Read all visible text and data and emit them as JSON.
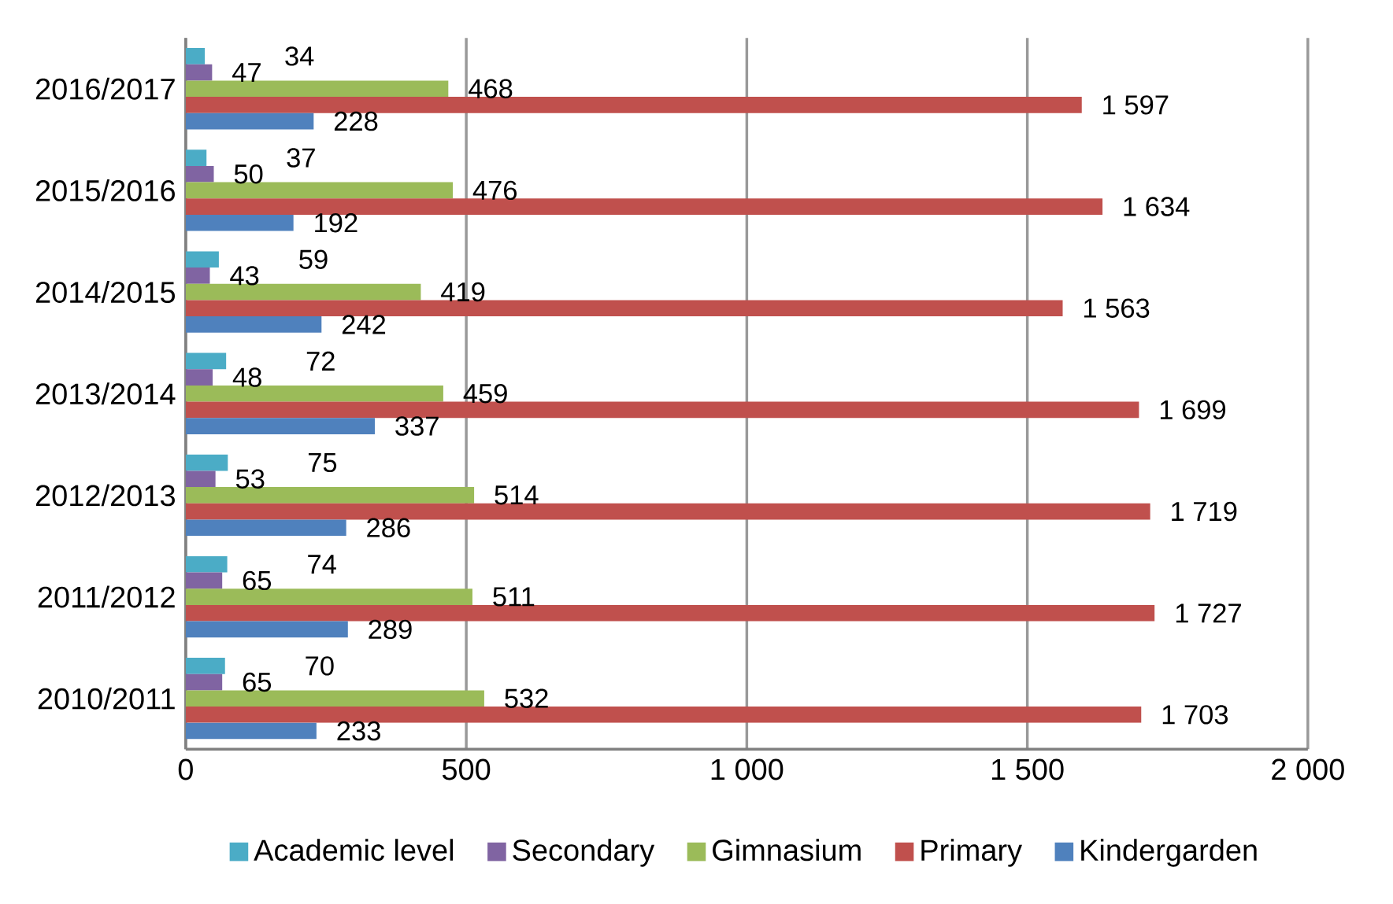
{
  "chart_data": {
    "type": "bar",
    "orientation": "horizontal",
    "categories": [
      "2016/2017",
      "2015/2016",
      "2014/2015",
      "2013/2014",
      "2012/2013",
      "2011/2012",
      "2010/2011"
    ],
    "series": [
      {
        "name": "Academic  level",
        "color": "#4bacc6",
        "values": [
          34,
          37,
          59,
          72,
          75,
          74,
          70
        ],
        "value_labels": [
          "34",
          "37",
          "59",
          "72",
          "75",
          "74",
          "70"
        ]
      },
      {
        "name": "Secondary",
        "color": "#8064a2",
        "values": [
          47,
          50,
          43,
          48,
          53,
          65,
          65
        ],
        "value_labels": [
          "47",
          "50",
          "43",
          "48",
          "53",
          "65",
          "65"
        ]
      },
      {
        "name": "Gimnasium",
        "color": "#9bbb59",
        "values": [
          468,
          476,
          419,
          459,
          514,
          511,
          532
        ],
        "value_labels": [
          "468",
          "476",
          "419",
          "459",
          "514",
          "511",
          "532"
        ]
      },
      {
        "name": "Primary",
        "color": "#c0504d",
        "values": [
          1597,
          1634,
          1563,
          1699,
          1719,
          1727,
          1703
        ],
        "value_labels": [
          "1 597",
          "1 634",
          "1 563",
          "1 699",
          "1 719",
          "1 727",
          "1 703"
        ]
      },
      {
        "name": "Kindergarden",
        "color": "#4f81bd",
        "values": [
          228,
          192,
          242,
          337,
          286,
          289,
          233
        ],
        "value_labels": [
          "228",
          "192",
          "242",
          "337",
          "286",
          "289",
          "233"
        ]
      }
    ],
    "xlim": [
      0,
      2000
    ],
    "xticks": [
      0,
      500,
      {
        "value": 1000,
        "label": "1 000"
      },
      {
        "value": 1500,
        "label": "1 500"
      },
      {
        "value": 2000,
        "label": "2 000"
      }
    ],
    "grid": "x",
    "legend": "bottom"
  }
}
